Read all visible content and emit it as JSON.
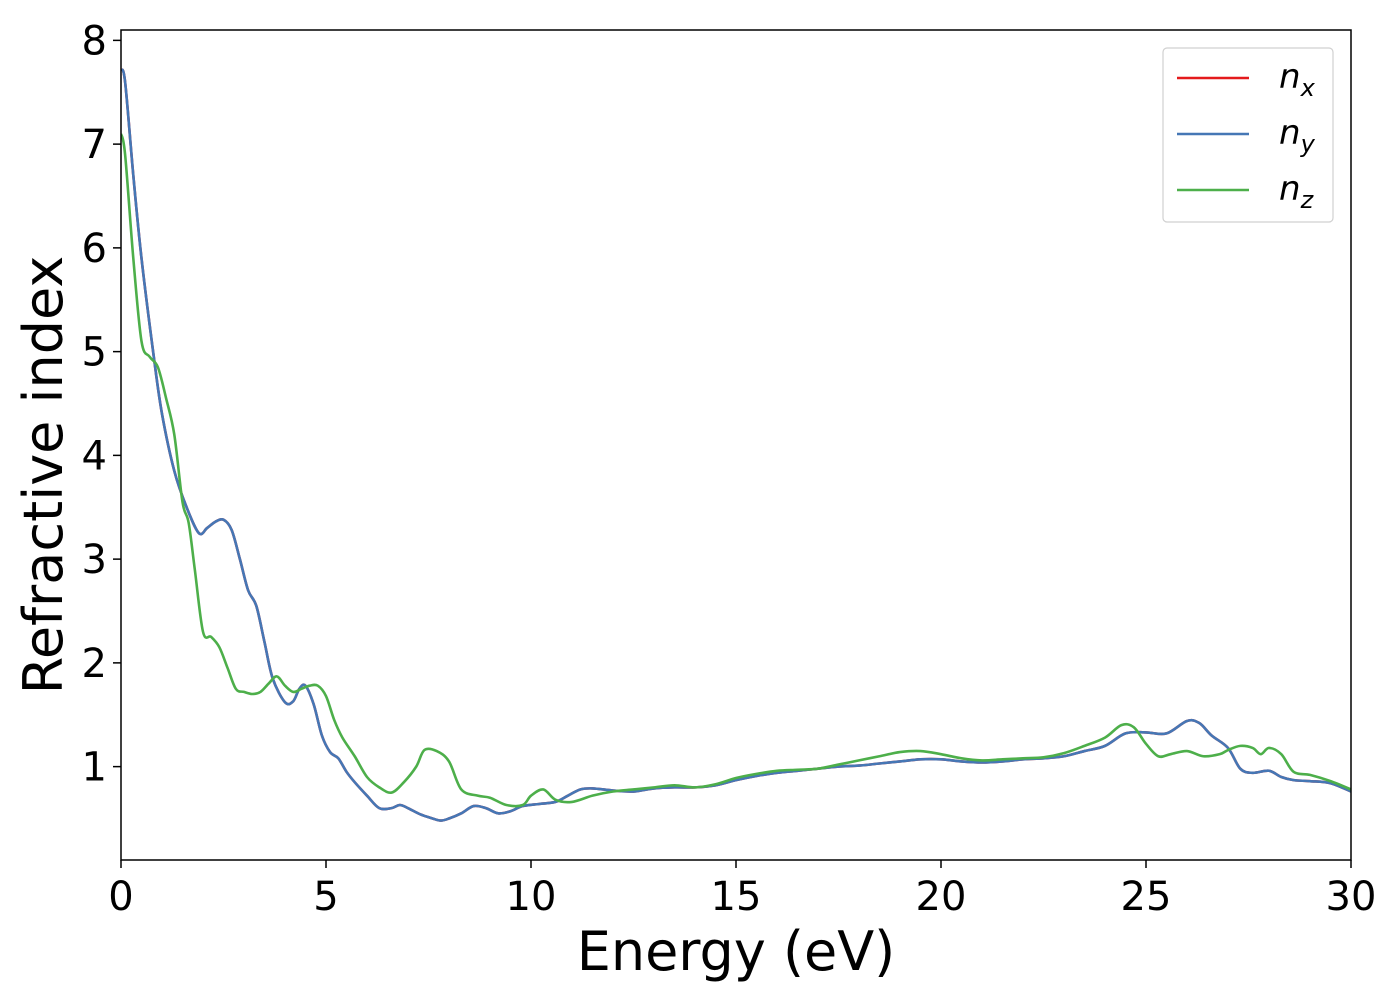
{
  "chart_data": {
    "type": "line",
    "title": "",
    "xlabel": "Energy (eV)",
    "ylabel": "Refractive index",
    "xlim": [
      0,
      30
    ],
    "ylim": [
      0.1,
      8.1
    ],
    "xticks": [
      0,
      5,
      10,
      15,
      20,
      25,
      30
    ],
    "xtick_labels": [
      "0",
      "5",
      "10",
      "15",
      "20",
      "25",
      "30"
    ],
    "yticks": [
      1,
      2,
      3,
      4,
      5,
      6,
      7,
      8
    ],
    "ytick_labels": [
      "1",
      "2",
      "3",
      "4",
      "5",
      "6",
      "7",
      "8"
    ],
    "grid": false,
    "legend_position": "top-right",
    "series": [
      {
        "name": "n_x",
        "label_base": "n",
        "label_sub": "x",
        "color": "#e41a1c",
        "x": [
          0,
          0.1,
          0.3,
          0.5,
          0.8,
          1.0,
          1.3,
          1.6,
          1.9,
          2.1,
          2.3,
          2.5,
          2.7,
          2.9,
          3.1,
          3.3,
          3.5,
          3.7,
          4.0,
          4.2,
          4.35,
          4.5,
          4.7,
          4.9,
          5.1,
          5.3,
          5.5,
          5.7,
          6.0,
          6.3,
          6.6,
          6.8,
          7.0,
          7.3,
          7.6,
          7.8,
          8.0,
          8.3,
          8.6,
          8.9,
          9.2,
          9.5,
          9.8,
          10.2,
          10.6,
          10.9,
          11.2,
          11.5,
          12.0,
          12.5,
          13.0,
          13.5,
          14.0,
          14.5,
          15.0,
          15.5,
          16.0,
          16.5,
          17.0,
          17.5,
          18.0,
          18.5,
          19.0,
          19.5,
          20.0,
          20.5,
          21.0,
          21.5,
          22.0,
          22.5,
          23.0,
          23.5,
          24.0,
          24.5,
          25.0,
          25.5,
          26.0,
          26.3,
          26.6,
          27.0,
          27.3,
          27.6,
          28.0,
          28.3,
          28.6,
          29.0,
          29.5,
          30.0
        ],
        "y": [
          7.72,
          7.6,
          6.7,
          5.9,
          4.95,
          4.4,
          3.85,
          3.5,
          3.25,
          3.3,
          3.36,
          3.38,
          3.28,
          3.0,
          2.7,
          2.55,
          2.2,
          1.85,
          1.62,
          1.63,
          1.75,
          1.78,
          1.6,
          1.3,
          1.14,
          1.08,
          0.95,
          0.85,
          0.72,
          0.6,
          0.6,
          0.63,
          0.6,
          0.54,
          0.5,
          0.48,
          0.5,
          0.55,
          0.62,
          0.6,
          0.55,
          0.57,
          0.62,
          0.64,
          0.66,
          0.72,
          0.78,
          0.79,
          0.77,
          0.76,
          0.79,
          0.8,
          0.8,
          0.82,
          0.87,
          0.91,
          0.94,
          0.96,
          0.98,
          1.0,
          1.01,
          1.03,
          1.05,
          1.07,
          1.07,
          1.05,
          1.04,
          1.05,
          1.07,
          1.08,
          1.1,
          1.15,
          1.2,
          1.32,
          1.33,
          1.32,
          1.44,
          1.42,
          1.3,
          1.18,
          0.98,
          0.94,
          0.96,
          0.9,
          0.87,
          0.86,
          0.84,
          0.76
        ]
      },
      {
        "name": "n_y",
        "label_base": "n",
        "label_sub": "y",
        "color": "#4577b5",
        "x": [
          0,
          0.1,
          0.3,
          0.5,
          0.8,
          1.0,
          1.3,
          1.6,
          1.9,
          2.1,
          2.3,
          2.5,
          2.7,
          2.9,
          3.1,
          3.3,
          3.5,
          3.7,
          4.0,
          4.2,
          4.35,
          4.5,
          4.7,
          4.9,
          5.1,
          5.3,
          5.5,
          5.7,
          6.0,
          6.3,
          6.6,
          6.8,
          7.0,
          7.3,
          7.6,
          7.8,
          8.0,
          8.3,
          8.6,
          8.9,
          9.2,
          9.5,
          9.8,
          10.2,
          10.6,
          10.9,
          11.2,
          11.5,
          12.0,
          12.5,
          13.0,
          13.5,
          14.0,
          14.5,
          15.0,
          15.5,
          16.0,
          16.5,
          17.0,
          17.5,
          18.0,
          18.5,
          19.0,
          19.5,
          20.0,
          20.5,
          21.0,
          21.5,
          22.0,
          22.5,
          23.0,
          23.5,
          24.0,
          24.5,
          25.0,
          25.5,
          26.0,
          26.3,
          26.6,
          27.0,
          27.3,
          27.6,
          28.0,
          28.3,
          28.6,
          29.0,
          29.5,
          30.0
        ],
        "y": [
          7.72,
          7.6,
          6.7,
          5.9,
          4.95,
          4.4,
          3.85,
          3.5,
          3.25,
          3.3,
          3.36,
          3.38,
          3.28,
          3.0,
          2.7,
          2.55,
          2.2,
          1.85,
          1.62,
          1.63,
          1.75,
          1.78,
          1.6,
          1.3,
          1.14,
          1.08,
          0.95,
          0.85,
          0.72,
          0.6,
          0.6,
          0.63,
          0.6,
          0.54,
          0.5,
          0.48,
          0.5,
          0.55,
          0.62,
          0.6,
          0.55,
          0.57,
          0.62,
          0.64,
          0.66,
          0.72,
          0.78,
          0.79,
          0.77,
          0.76,
          0.79,
          0.8,
          0.8,
          0.82,
          0.87,
          0.91,
          0.94,
          0.96,
          0.98,
          1.0,
          1.01,
          1.03,
          1.05,
          1.07,
          1.07,
          1.05,
          1.04,
          1.05,
          1.07,
          1.08,
          1.1,
          1.15,
          1.2,
          1.32,
          1.33,
          1.32,
          1.44,
          1.42,
          1.3,
          1.18,
          0.98,
          0.94,
          0.96,
          0.9,
          0.87,
          0.86,
          0.84,
          0.76
        ]
      },
      {
        "name": "n_z",
        "label_base": "n",
        "label_sub": "z",
        "color": "#4daf4a",
        "x": [
          0,
          0.1,
          0.3,
          0.5,
          0.7,
          0.9,
          1.1,
          1.3,
          1.5,
          1.65,
          1.8,
          2.0,
          2.2,
          2.4,
          2.6,
          2.8,
          3.0,
          3.2,
          3.4,
          3.6,
          3.8,
          4.0,
          4.2,
          4.4,
          4.6,
          4.8,
          5.0,
          5.2,
          5.4,
          5.7,
          6.0,
          6.3,
          6.6,
          6.9,
          7.2,
          7.4,
          7.7,
          8.0,
          8.3,
          8.7,
          9.0,
          9.4,
          9.8,
          10.0,
          10.3,
          10.6,
          11.0,
          11.5,
          12.0,
          12.5,
          13.0,
          13.5,
          14.0,
          14.5,
          15.0,
          15.5,
          16.0,
          16.5,
          17.0,
          17.5,
          18.0,
          18.5,
          19.0,
          19.5,
          20.0,
          20.5,
          21.0,
          21.5,
          22.0,
          22.5,
          23.0,
          23.5,
          24.0,
          24.4,
          24.7,
          25.0,
          25.3,
          25.6,
          26.0,
          26.4,
          26.8,
          27.0,
          27.3,
          27.6,
          27.8,
          28.0,
          28.3,
          28.6,
          29.0,
          29.5,
          30.0
        ],
        "y": [
          7.1,
          6.9,
          5.9,
          5.1,
          4.95,
          4.85,
          4.55,
          4.2,
          3.55,
          3.35,
          2.9,
          2.3,
          2.25,
          2.15,
          1.95,
          1.75,
          1.72,
          1.7,
          1.72,
          1.8,
          1.87,
          1.78,
          1.72,
          1.75,
          1.78,
          1.78,
          1.68,
          1.45,
          1.28,
          1.1,
          0.9,
          0.8,
          0.75,
          0.85,
          1.0,
          1.16,
          1.15,
          1.05,
          0.78,
          0.72,
          0.7,
          0.63,
          0.63,
          0.72,
          0.78,
          0.68,
          0.66,
          0.72,
          0.76,
          0.78,
          0.8,
          0.82,
          0.8,
          0.83,
          0.89,
          0.93,
          0.96,
          0.97,
          0.98,
          1.02,
          1.06,
          1.1,
          1.14,
          1.15,
          1.12,
          1.08,
          1.06,
          1.07,
          1.08,
          1.09,
          1.13,
          1.2,
          1.28,
          1.4,
          1.38,
          1.22,
          1.1,
          1.12,
          1.15,
          1.1,
          1.12,
          1.16,
          1.2,
          1.18,
          1.12,
          1.18,
          1.12,
          0.95,
          0.92,
          0.86,
          0.78
        ]
      }
    ]
  }
}
